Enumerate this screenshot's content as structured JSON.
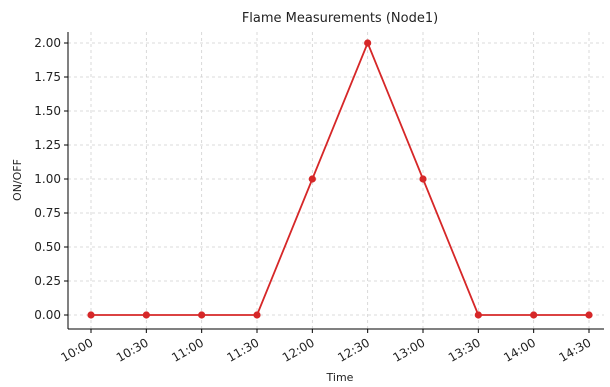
{
  "chart_data": {
    "type": "line",
    "title": "Flame Measurements (Node1)",
    "xlabel": "Time",
    "ylabel": "ON/OFF",
    "categories": [
      "10:00",
      "10:30",
      "11:00",
      "11:30",
      "12:00",
      "12:30",
      "13:00",
      "13:30",
      "14:00",
      "14:30"
    ],
    "series": [
      {
        "values": [
          0,
          0,
          0,
          0,
          1,
          2,
          1,
          0,
          0,
          0
        ],
        "color": "#d62728",
        "marker": "circle"
      }
    ],
    "ylim": [
      -0.1,
      2.1
    ],
    "yticks": [
      0.0,
      0.25,
      0.5,
      0.75,
      1.0,
      1.25,
      1.5,
      1.75,
      2.0
    ],
    "ytick_labels": [
      "0.00",
      "0.25",
      "0.50",
      "0.75",
      "1.00",
      "1.25",
      "1.50",
      "1.75",
      "2.00"
    ],
    "grid": true,
    "x_tick_rotation": -30
  }
}
